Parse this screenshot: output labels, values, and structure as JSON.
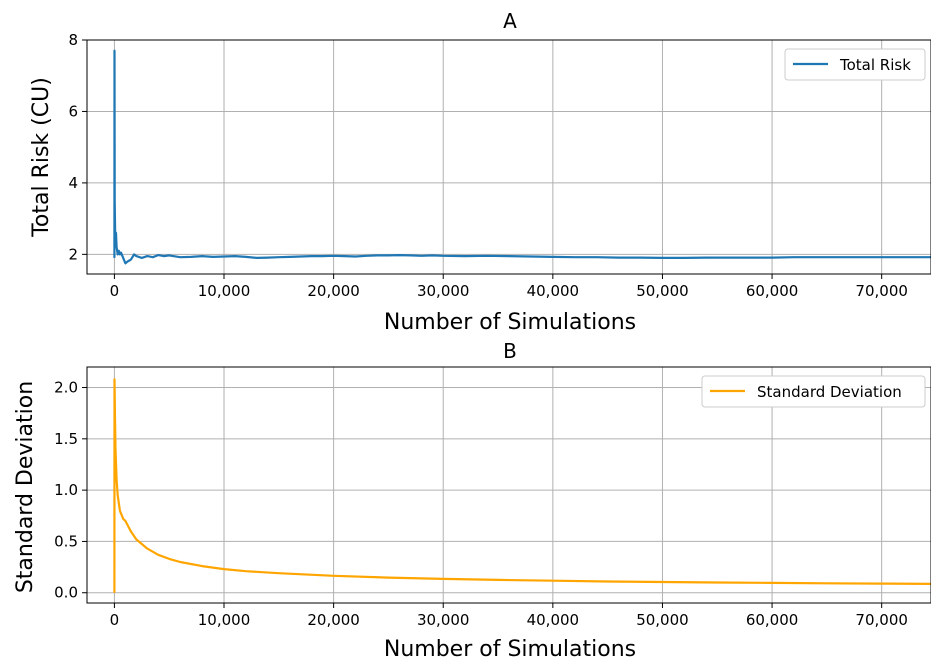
{
  "chart_data": [
    {
      "type": "line",
      "title": "A",
      "xlabel": "Number of Simulations",
      "ylabel": "Total Risk (CU)",
      "xlim": [
        -2500,
        74500
      ],
      "ylim": [
        1.45,
        8.0
      ],
      "x_ticks": [
        0,
        10000,
        20000,
        30000,
        40000,
        50000,
        60000,
        70000
      ],
      "x_tick_labels": [
        "0",
        "10,000",
        "20,000",
        "30,000",
        "40,000",
        "50,000",
        "60,000",
        "70,000"
      ],
      "y_ticks": [
        2,
        4,
        6,
        8
      ],
      "y_tick_labels": [
        "2",
        "4",
        "6",
        "8"
      ],
      "grid": true,
      "legend": "top-right",
      "series": [
        {
          "name": "Total Risk",
          "color": "#1f77b4",
          "x": [
            0,
            10,
            30,
            60,
            100,
            150,
            200,
            300,
            400,
            500,
            600,
            800,
            1000,
            1200,
            1500,
            1800,
            2000,
            2500,
            3000,
            3500,
            4000,
            4500,
            5000,
            6000,
            7000,
            8000,
            9000,
            10000,
            11000,
            12000,
            13000,
            14000,
            15000,
            16000,
            17000,
            18000,
            19000,
            20000,
            21000,
            22000,
            23000,
            24000,
            25000,
            26000,
            27000,
            28000,
            29000,
            30000,
            32000,
            34000,
            36000,
            38000,
            40000,
            42000,
            44000,
            46000,
            48000,
            50000,
            52000,
            54000,
            56000,
            58000,
            60000,
            62000,
            64000,
            66000,
            68000,
            70000,
            72000,
            74500
          ],
          "y": [
            1.9,
            7.7,
            3.5,
            2.7,
            2.3,
            2.6,
            2.2,
            2.0,
            2.1,
            2.0,
            2.05,
            1.9,
            1.75,
            1.8,
            1.85,
            2.0,
            1.95,
            1.9,
            1.95,
            1.92,
            1.98,
            1.95,
            1.97,
            1.92,
            1.93,
            1.95,
            1.93,
            1.94,
            1.95,
            1.93,
            1.9,
            1.91,
            1.92,
            1.93,
            1.94,
            1.95,
            1.95,
            1.96,
            1.95,
            1.94,
            1.96,
            1.97,
            1.97,
            1.98,
            1.97,
            1.96,
            1.97,
            1.96,
            1.95,
            1.96,
            1.95,
            1.94,
            1.93,
            1.92,
            1.92,
            1.91,
            1.91,
            1.9,
            1.9,
            1.91,
            1.91,
            1.91,
            1.91,
            1.92,
            1.92,
            1.92,
            1.92,
            1.92,
            1.92,
            1.92
          ]
        }
      ]
    },
    {
      "type": "line",
      "title": "B",
      "xlabel": "Number of Simulations",
      "ylabel": "Standard Deviation",
      "xlim": [
        -2500,
        74500
      ],
      "ylim": [
        -0.1,
        2.2
      ],
      "x_ticks": [
        0,
        10000,
        20000,
        30000,
        40000,
        50000,
        60000,
        70000
      ],
      "x_tick_labels": [
        "0",
        "10,000",
        "20,000",
        "30,000",
        "40,000",
        "50,000",
        "60,000",
        "70,000"
      ],
      "y_ticks": [
        0.0,
        0.5,
        1.0,
        1.5,
        2.0
      ],
      "y_tick_labels": [
        "0.0",
        "0.5",
        "1.0",
        "1.5",
        "2.0"
      ],
      "grid": true,
      "legend": "top-right",
      "series": [
        {
          "name": "Standard Deviation",
          "color": "#ffa500",
          "x": [
            0,
            10,
            50,
            100,
            200,
            300,
            500,
            800,
            1000,
            1500,
            2000,
            3000,
            4000,
            5000,
            6000,
            8000,
            10000,
            12000,
            15000,
            20000,
            25000,
            30000,
            35000,
            40000,
            45000,
            50000,
            55000,
            60000,
            65000,
            70000,
            74500
          ],
          "y": [
            0.0,
            2.08,
            1.7,
            1.4,
            1.1,
            0.95,
            0.8,
            0.72,
            0.7,
            0.6,
            0.52,
            0.43,
            0.37,
            0.33,
            0.3,
            0.26,
            0.23,
            0.21,
            0.19,
            0.165,
            0.148,
            0.135,
            0.125,
            0.117,
            0.11,
            0.105,
            0.1,
            0.096,
            0.092,
            0.089,
            0.086
          ]
        }
      ]
    }
  ]
}
